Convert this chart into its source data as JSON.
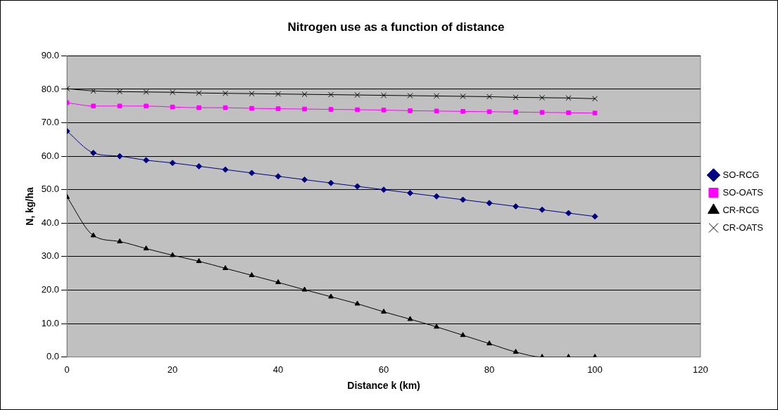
{
  "chart_data": {
    "type": "line",
    "title": "Nitrogen use as a function of distance",
    "xlabel": "Distance k (km)",
    "ylabel": "N, kg/ha",
    "x": [
      0,
      5,
      10,
      15,
      20,
      25,
      30,
      35,
      40,
      45,
      50,
      55,
      60,
      65,
      70,
      75,
      80,
      85,
      90,
      95,
      100
    ],
    "series": [
      {
        "name": "SO-RCG",
        "color": "#000080",
        "marker": "diamond",
        "values": [
          67.5,
          61,
          60,
          58.8,
          58,
          57,
          56,
          55,
          54,
          53,
          52,
          51,
          50,
          49,
          48,
          47,
          46,
          45,
          44,
          43,
          42
        ]
      },
      {
        "name": "SO-OATS",
        "color": "#ff00ff",
        "marker": "square",
        "values": [
          76,
          75,
          75,
          75,
          74.7,
          74.5,
          74.5,
          74.3,
          74.2,
          74.1,
          74,
          73.9,
          73.8,
          73.6,
          73.5,
          73.4,
          73.3,
          73.2,
          73.1,
          73,
          72.9
        ]
      },
      {
        "name": "CR-RCG",
        "color": "#000000",
        "marker": "triangle",
        "values": [
          47.8,
          36.3,
          34.5,
          32.4,
          30.4,
          28.6,
          26.5,
          24.4,
          22.3,
          20.1,
          18,
          15.9,
          13.5,
          11.3,
          9,
          6.5,
          4,
          1.5,
          0,
          0,
          0
        ]
      },
      {
        "name": "CR-OATS",
        "color": "#000000",
        "marker": "cross",
        "values": [
          80.2,
          79.5,
          79.3,
          79.2,
          79.1,
          78.9,
          78.8,
          78.7,
          78.6,
          78.5,
          78.4,
          78.3,
          78.2,
          78.1,
          78,
          77.9,
          77.8,
          77.6,
          77.5,
          77.4,
          77.2
        ]
      }
    ],
    "xlim": [
      0,
      120
    ],
    "xticks": [
      0,
      20,
      40,
      60,
      80,
      100,
      120
    ],
    "ylim": [
      0,
      90
    ],
    "yticks": [
      {
        "value": 0,
        "label": "0.0"
      },
      {
        "value": 10,
        "label": "10.0"
      },
      {
        "value": 20,
        "label": "20.0"
      },
      {
        "value": 30,
        "label": "30.0"
      },
      {
        "value": 40,
        "label": "40.0"
      },
      {
        "value": 50,
        "label": "50.0"
      },
      {
        "value": 60,
        "label": "60.0"
      },
      {
        "value": 70,
        "label": "70.0"
      },
      {
        "value": 80,
        "label": "80.0"
      },
      {
        "value": 90,
        "label": "90.0"
      }
    ],
    "grid": "y",
    "legend": "right",
    "line_style": "solid"
  }
}
